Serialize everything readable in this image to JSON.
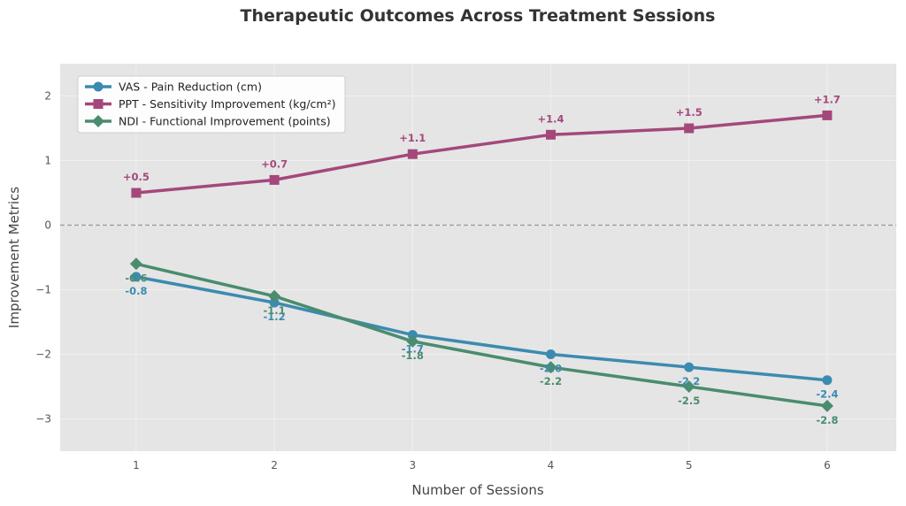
{
  "chart_data": {
    "type": "line",
    "title": "Therapeutic Outcomes Across Treatment Sessions",
    "xlabel": "Number of Sessions",
    "ylabel": "Improvement Metrics",
    "x": [
      1,
      2,
      3,
      4,
      5,
      6
    ],
    "xlim": [
      0.45,
      6.5
    ],
    "ylim": [
      -3.5,
      2.5
    ],
    "yticks": [
      -3,
      -2,
      -1,
      0,
      1,
      2
    ],
    "ytick_labels": [
      "−3",
      "−2",
      "−1",
      "0",
      "1",
      "2"
    ],
    "grid": true,
    "reference_line_y": 0,
    "legend_position": "top-left",
    "series": [
      {
        "name": "VAS - Pain Reduction (cm)",
        "color": "#3b8bb0",
        "marker": "circle",
        "values": [
          -0.8,
          -1.2,
          -1.7,
          -2.0,
          -2.2,
          -2.4
        ],
        "labels": [
          "-0.8",
          "-1.2",
          "-1.7",
          "-2.0",
          "-2.2",
          "-2.4"
        ]
      },
      {
        "name": "PPT - Sensitivity Improvement (kg/cm²)",
        "color": "#a4487b",
        "marker": "square",
        "values": [
          0.5,
          0.7,
          1.1,
          1.4,
          1.5,
          1.7
        ],
        "labels": [
          "+0.5",
          "+0.7",
          "+1.1",
          "+1.4",
          "+1.5",
          "+1.7"
        ]
      },
      {
        "name": "NDI - Functional Improvement (points)",
        "color": "#4a8c6e",
        "marker": "diamond",
        "values": [
          -0.6,
          -1.1,
          -1.8,
          -2.2,
          -2.5,
          -2.8
        ],
        "labels": [
          "-0.6",
          "-1.1",
          "-1.8",
          "-2.2",
          "-2.5",
          "-2.8"
        ]
      }
    ]
  }
}
